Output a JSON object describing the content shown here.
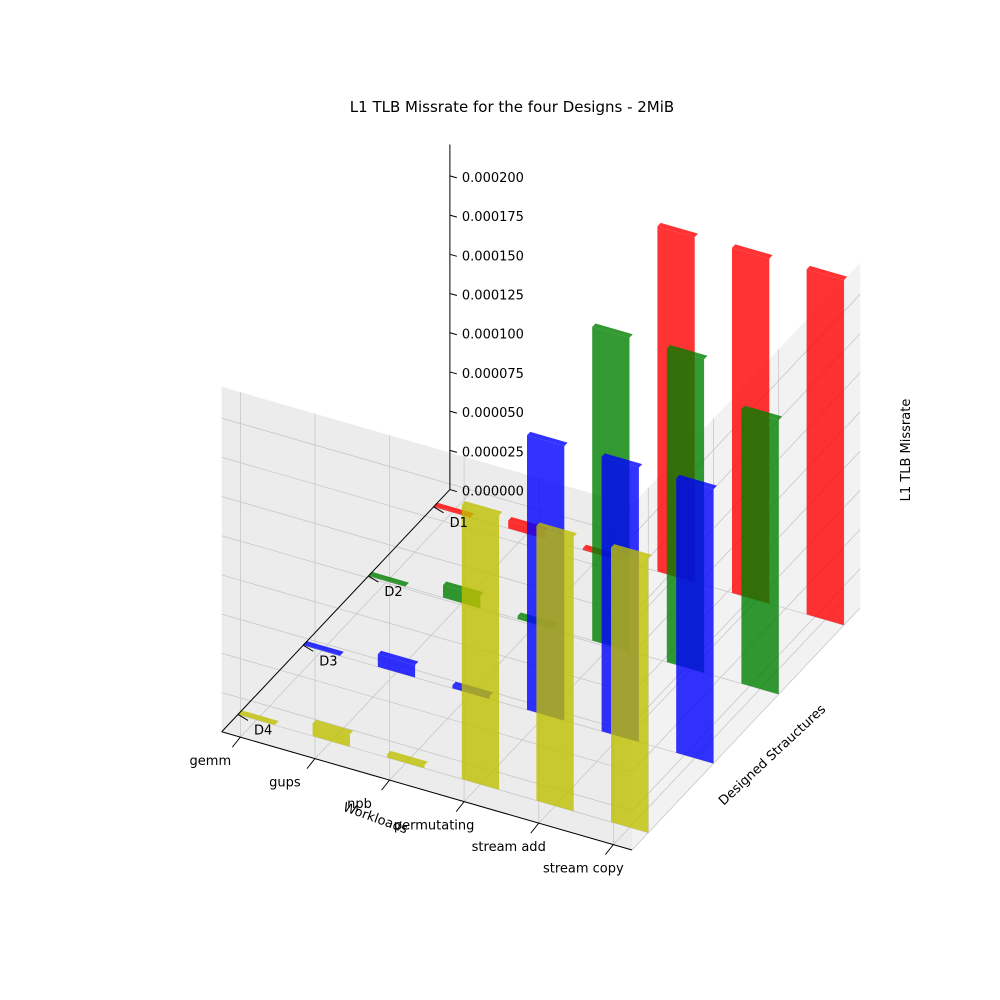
{
  "chart_data": {
    "type": "bar3d",
    "title": "L1 TLB Missrate for the four Designs - 2MiB",
    "xlabel": "Workloads",
    "ylabel": "Designed Strauctures",
    "zlabel": "L1 TLB Missrate",
    "categories": [
      "gemm",
      "gups",
      "npb",
      "permutating",
      "stream add",
      "stream copy"
    ],
    "designs": [
      "D1",
      "D2",
      "D3",
      "D4"
    ],
    "zlim": [
      0,
      0.00022
    ],
    "zticks": [
      "0.000000",
      "0.000025",
      "0.000050",
      "0.000075",
      "0.000100",
      "0.000125",
      "0.000150",
      "0.000175",
      "0.000200"
    ],
    "grid": true,
    "series": [
      {
        "name": "D1",
        "color": "#ff0000",
        "values": [
          5e-07,
          5e-06,
          1e-06,
          0.00022,
          0.00022,
          0.00022
        ]
      },
      {
        "name": "D2",
        "color": "#008000",
        "values": [
          5e-07,
          8e-06,
          2e-06,
          0.0002,
          0.0002,
          0.000175
        ]
      },
      {
        "name": "D3",
        "color": "#0000ff",
        "values": [
          5e-07,
          8e-06,
          2e-06,
          0.000175,
          0.000175,
          0.000175
        ]
      },
      {
        "name": "D4",
        "color": "#bfbf00",
        "values": [
          5e-07,
          8e-06,
          2e-06,
          0.000175,
          0.000175,
          0.000175
        ]
      }
    ]
  }
}
